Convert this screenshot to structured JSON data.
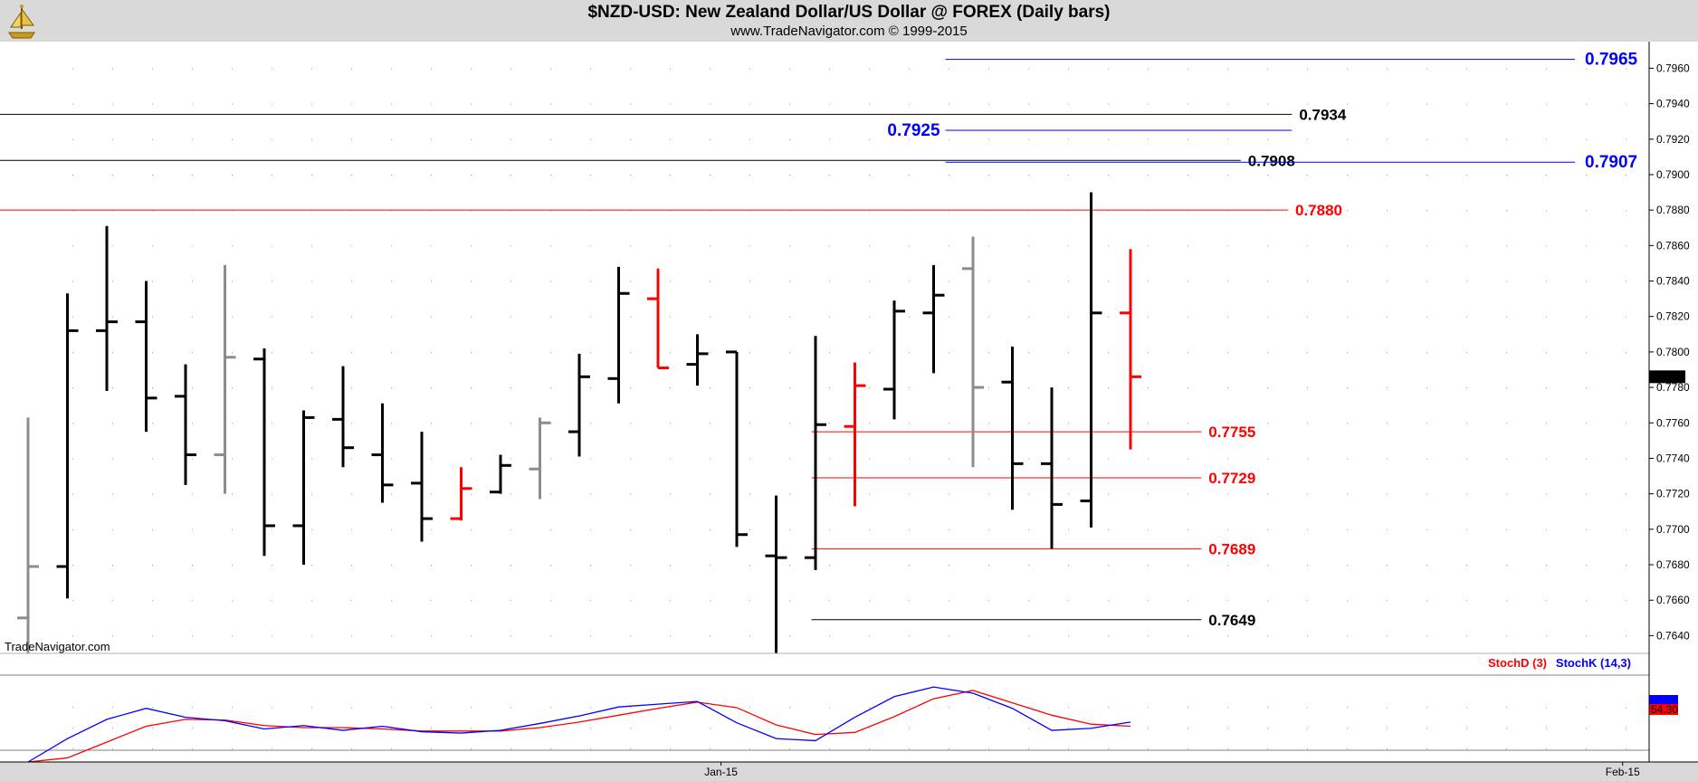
{
  "header": {
    "title": "$NZD-USD:  New Zealand Dollar/US Dollar @ FOREX  (Daily bars)",
    "subtitle": "www.TradeNavigator.com © 1999-2015"
  },
  "watermark": "TradeNavigator.com",
  "colors": {
    "bar_up": "#000000",
    "bar_down_gray": "#8c8c8c",
    "bar_red": "#ff0000",
    "level_red": "#ff0000",
    "level_blue": "#0000ff",
    "level_black": "#000000",
    "stoch_d": "#ff0000",
    "stoch_k": "#0000ff"
  },
  "chart_data": [
    {
      "type": "ohlc",
      "ylim": [
        0.763,
        0.7975
      ],
      "y_ticks": [
        "0.7640",
        "0.7660",
        "0.7680",
        "0.7700",
        "0.7720",
        "0.7740",
        "0.7760",
        "0.7780",
        "0.7800",
        "0.7820",
        "0.7840",
        "0.7860",
        "0.7880",
        "0.7900",
        "0.7920",
        "0.7940",
        "0.7960"
      ],
      "x_labels": [
        {
          "label": "Jan-15",
          "bar_index": 17.6
        },
        {
          "label": "Feb-15",
          "bar_index": 40.5
        }
      ],
      "last_price": "0.7786",
      "bars": [
        {
          "o": 0.765,
          "h": 0.7763,
          "l": 0.763,
          "c": 0.7679,
          "color": "gray"
        },
        {
          "o": 0.7679,
          "h": 0.7833,
          "l": 0.7661,
          "c": 0.7812,
          "color": "black"
        },
        {
          "o": 0.7812,
          "h": 0.7871,
          "l": 0.7778,
          "c": 0.7817,
          "color": "black"
        },
        {
          "o": 0.7817,
          "h": 0.784,
          "l": 0.7755,
          "c": 0.7774,
          "color": "black"
        },
        {
          "o": 0.7775,
          "h": 0.7793,
          "l": 0.7725,
          "c": 0.7742,
          "color": "black"
        },
        {
          "o": 0.7742,
          "h": 0.7849,
          "l": 0.772,
          "c": 0.7797,
          "color": "gray"
        },
        {
          "o": 0.7796,
          "h": 0.7802,
          "l": 0.7685,
          "c": 0.7702,
          "color": "black"
        },
        {
          "o": 0.7702,
          "h": 0.7767,
          "l": 0.768,
          "c": 0.7763,
          "color": "black"
        },
        {
          "o": 0.7762,
          "h": 0.7792,
          "l": 0.7735,
          "c": 0.7746,
          "color": "black"
        },
        {
          "o": 0.7742,
          "h": 0.7771,
          "l": 0.7715,
          "c": 0.7725,
          "color": "black"
        },
        {
          "o": 0.7726,
          "h": 0.7755,
          "l": 0.7693,
          "c": 0.7706,
          "color": "black"
        },
        {
          "o": 0.7706,
          "h": 0.7735,
          "l": 0.7705,
          "c": 0.7723,
          "color": "red"
        },
        {
          "o": 0.7721,
          "h": 0.7742,
          "l": 0.772,
          "c": 0.7736,
          "color": "black"
        },
        {
          "o": 0.7734,
          "h": 0.7763,
          "l": 0.7717,
          "c": 0.776,
          "color": "gray"
        },
        {
          "o": 0.7755,
          "h": 0.7799,
          "l": 0.7741,
          "c": 0.7786,
          "color": "black"
        },
        {
          "o": 0.7785,
          "h": 0.7848,
          "l": 0.7771,
          "c": 0.7833,
          "color": "black"
        },
        {
          "o": 0.783,
          "h": 0.7847,
          "l": 0.7791,
          "c": 0.7791,
          "color": "red"
        },
        {
          "o": 0.7793,
          "h": 0.781,
          "l": 0.7781,
          "c": 0.7799,
          "color": "black"
        },
        {
          "o": 0.78,
          "h": 0.78,
          "l": 0.769,
          "c": 0.7697,
          "color": "black"
        },
        {
          "o": 0.7685,
          "h": 0.7719,
          "l": 0.763,
          "c": 0.7684,
          "color": "black"
        },
        {
          "o": 0.7684,
          "h": 0.7809,
          "l": 0.7677,
          "c": 0.7759,
          "color": "black"
        },
        {
          "o": 0.7758,
          "h": 0.7794,
          "l": 0.7713,
          "c": 0.7781,
          "color": "red"
        },
        {
          "o": 0.7779,
          "h": 0.7829,
          "l": 0.7762,
          "c": 0.7823,
          "color": "black"
        },
        {
          "o": 0.7822,
          "h": 0.7849,
          "l": 0.7788,
          "c": 0.7832,
          "color": "black"
        },
        {
          "o": 0.7847,
          "h": 0.7865,
          "l": 0.7735,
          "c": 0.778,
          "color": "gray"
        },
        {
          "o": 0.7783,
          "h": 0.7803,
          "l": 0.7711,
          "c": 0.7737,
          "color": "black"
        },
        {
          "o": 0.7737,
          "h": 0.778,
          "l": 0.7689,
          "c": 0.7714,
          "color": "black"
        },
        {
          "o": 0.7716,
          "h": 0.789,
          "l": 0.7701,
          "c": 0.7822,
          "color": "black"
        },
        {
          "o": 0.7822,
          "h": 0.7858,
          "l": 0.7745,
          "c": 0.7786,
          "color": "red"
        }
      ],
      "levels": [
        {
          "value": 0.7965,
          "label": "0.7965",
          "color": "blue",
          "from_bar": 23.3,
          "to_bar": 40.8,
          "label_side": "right_axis"
        },
        {
          "value": 0.7934,
          "label": "0.7934",
          "color": "black",
          "from_bar": -1,
          "to_bar": 32.1,
          "label_side": "end"
        },
        {
          "value": 0.7925,
          "label": "0.7925",
          "color": "blue",
          "from_bar": 23.3,
          "to_bar": 32.1,
          "label_side": "start"
        },
        {
          "value": 0.7908,
          "label": "0.7908",
          "color": "black",
          "from_bar": -1,
          "to_bar": 30.8,
          "label_side": "end"
        },
        {
          "value": 0.7907,
          "label": "0.7907",
          "color": "blue",
          "from_bar": 23.3,
          "to_bar": 40.8,
          "label_side": "right_axis"
        },
        {
          "value": 0.788,
          "label": "0.7880",
          "color": "red",
          "from_bar": -1,
          "to_bar": 32.0,
          "label_side": "end"
        },
        {
          "value": 0.7755,
          "label": "0.7755",
          "color": "red",
          "from_bar": 19.9,
          "to_bar": 29.8,
          "label_side": "end"
        },
        {
          "value": 0.7729,
          "label": "0.7729",
          "color": "red",
          "from_bar": 19.9,
          "to_bar": 29.8,
          "label_side": "end"
        },
        {
          "value": 0.7689,
          "label": "0.7689",
          "color": "red",
          "from_bar": 19.9,
          "to_bar": 29.8,
          "label_side": "end"
        },
        {
          "value": 0.7649,
          "label": "0.7649",
          "color": "black",
          "from_bar": 19.9,
          "to_bar": 29.8,
          "label_side": "end"
        }
      ]
    },
    {
      "type": "line",
      "ylim": [
        0,
        100
      ],
      "legend": [
        {
          "name": "StochD (3)",
          "color": "red"
        },
        {
          "name": "StochK (14,3)",
          "color": "blue"
        }
      ],
      "last_value": "54.30",
      "series": [
        {
          "name": "StochD (3)",
          "values": [
            0,
            6,
            29,
            52,
            62,
            61,
            53,
            50,
            50,
            48,
            45,
            45,
            45,
            50,
            58,
            68,
            78,
            87,
            79,
            54,
            40,
            43,
            66,
            92,
            104,
            86,
            68,
            55,
            52
          ]
        },
        {
          "name": "StochK (14,3)",
          "values": [
            0,
            34,
            62,
            78,
            65,
            60,
            48,
            53,
            46,
            52,
            44,
            42,
            46,
            56,
            67,
            80,
            84,
            88,
            57,
            34,
            31,
            65,
            95,
            109,
            100,
            78,
            46,
            49,
            58
          ]
        }
      ]
    }
  ]
}
